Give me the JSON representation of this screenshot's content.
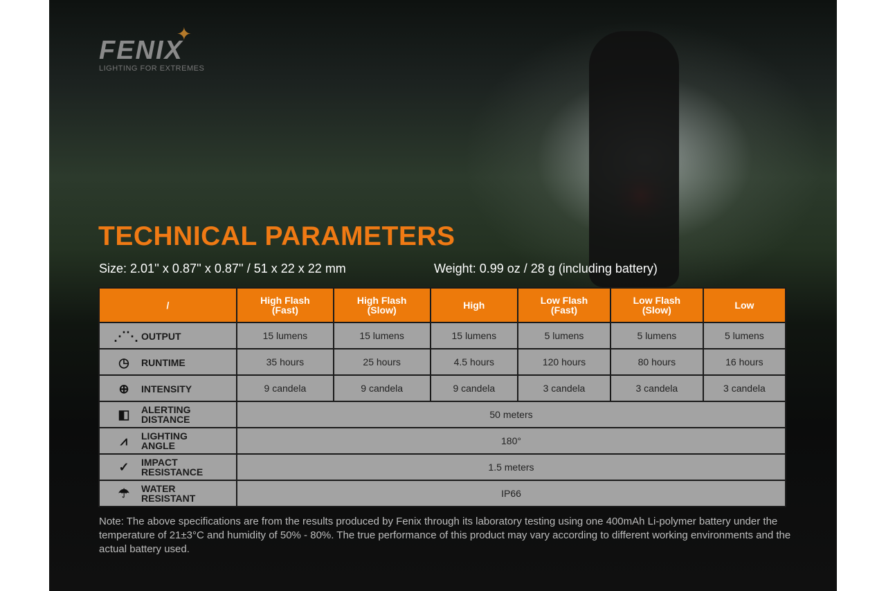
{
  "brand": {
    "name": "FENIX",
    "tagline": "LIGHTING FOR EXTREMES",
    "accent": "#ed7a0b"
  },
  "title": "TECHNICAL PARAMETERS",
  "size": "Size: 2.01'' x 0.87'' x 0.87'' / 51 x 22 x 22 mm",
  "weight": "Weight: 0.99 oz / 28 g (including battery)",
  "table": {
    "corner": "/",
    "modes": [
      [
        "High Flash",
        "(Fast)"
      ],
      [
        "High Flash",
        "(Slow)"
      ],
      [
        "High",
        ""
      ],
      [
        "Low Flash",
        "(Fast)"
      ],
      [
        "Low Flash",
        "(Slow)"
      ],
      [
        "Low",
        ""
      ]
    ],
    "rows": [
      {
        "icon": "output-icon",
        "label": [
          "OUTPUT"
        ],
        "values": [
          "15 lumens",
          "15 lumens",
          "15 lumens",
          "5 lumens",
          "5 lumens",
          "5 lumens"
        ]
      },
      {
        "icon": "clock-icon",
        "label": [
          "RUNTIME"
        ],
        "values": [
          "35 hours",
          "25 hours",
          "4.5 hours",
          "120 hours",
          "80 hours",
          "16 hours"
        ]
      },
      {
        "icon": "target-icon",
        "label": [
          "INTENSITY"
        ],
        "values": [
          "9 candela",
          "9 candela",
          "9 candela",
          "3 candela",
          "3 candela",
          "3 candela"
        ]
      },
      {
        "icon": "distance-icon",
        "label": [
          "ALERTING",
          "DISTANCE"
        ],
        "span": "50 meters"
      },
      {
        "icon": "angle-icon",
        "label": [
          "LIGHTING",
          "ANGLE"
        ],
        "span": "180°"
      },
      {
        "icon": "impact-icon",
        "label": [
          "IMPACT",
          "RESISTANCE"
        ],
        "span": "1.5 meters"
      },
      {
        "icon": "water-icon",
        "label": [
          "WATER",
          "RESISTANT"
        ],
        "span": "IP66"
      }
    ]
  },
  "note": "Note: The above specifications are from the results produced by Fenix through its laboratory testing using one 400mAh Li-polymer battery under the temperature of 21±3°C and humidity of 50% - 80%. The true performance of this product may vary according to different working environments and the actual battery used."
}
